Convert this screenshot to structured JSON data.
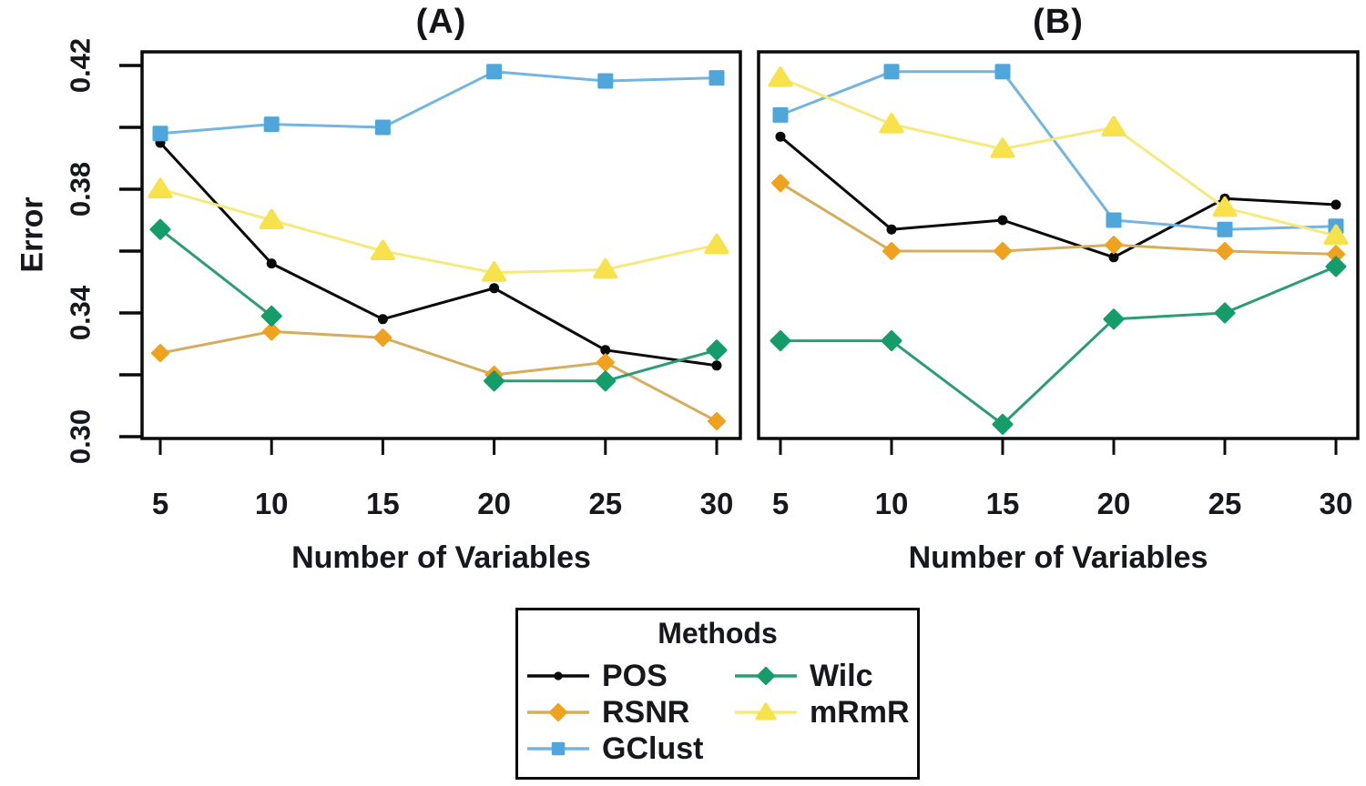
{
  "page": {
    "background": "#ffffff",
    "text_color": "#17171e"
  },
  "colors": {
    "pos_black": "#0a0a0a",
    "rsnr_marker_orange": "#efa21e",
    "rsnr_line_tan": "#d4ad5e",
    "gclust_marker_blue": "#4fa6da",
    "gclust_line_blue": "#74b5e0",
    "wilc_marker_green": "#149c6b",
    "wilc_line_green": "#2b9c75",
    "mrmr_marker_yellow": "#f7e24b",
    "mrmr_line_yellow": "#f6e97e",
    "axis_black": "#0a0a0a"
  },
  "legend": {
    "title": "Methods",
    "entries": [
      {
        "label": "POS",
        "marker": "circle",
        "marker_color": "#0a0a0a",
        "line_color": "#0a0a0a"
      },
      {
        "label": "RSNR",
        "marker": "diamond",
        "marker_color": "#efa21e",
        "line_color": "#d4ad5e"
      },
      {
        "label": "GClust",
        "marker": "square",
        "marker_color": "#4fa6da",
        "line_color": "#74b5e0"
      },
      {
        "label": "Wilc",
        "marker": "diamond",
        "marker_color": "#149c6b",
        "line_color": "#2b9c75"
      },
      {
        "label": "mRmR",
        "marker": "triangle",
        "marker_color": "#f7e24b",
        "line_color": "#f6e97e"
      }
    ]
  },
  "chart_data": [
    {
      "type": "line",
      "title": "(A)",
      "xlabel": "Number of Variables",
      "ylabel": "Error",
      "x": [
        5,
        10,
        15,
        20,
        25,
        30
      ],
      "xtick_labels": [
        "5",
        "10",
        "15",
        "20",
        "25",
        "30"
      ],
      "xlim": [
        5,
        30
      ],
      "ylim": [
        0.3,
        0.42
      ],
      "yticks_labeled": [
        0.42,
        0.38,
        0.34,
        0.3
      ],
      "ytick_labels": [
        "0.42",
        "0.38",
        "0.34",
        "0.30"
      ],
      "yticks_minor": [
        0.4,
        0.36,
        0.32
      ],
      "grid": false,
      "legend_position": "below-figure",
      "series": [
        {
          "name": "POS",
          "marker": "circle",
          "marker_color": "#0a0a0a",
          "line_color": "#0a0a0a",
          "values": [
            0.395,
            0.356,
            0.338,
            0.348,
            0.328,
            0.323
          ]
        },
        {
          "name": "RSNR",
          "marker": "diamond",
          "marker_color": "#efa21e",
          "line_color": "#d4ad5e",
          "values": [
            0.327,
            0.334,
            0.332,
            0.32,
            0.324,
            0.305
          ]
        },
        {
          "name": "GClust",
          "marker": "square",
          "marker_color": "#4fa6da",
          "line_color": "#74b5e0",
          "values": [
            0.398,
            0.401,
            0.4,
            0.418,
            0.415,
            0.416
          ]
        },
        {
          "name": "Wilc",
          "marker": "diamond",
          "marker_color": "#149c6b",
          "line_color": "#2b9c75",
          "values": [
            0.367,
            0.339,
            null,
            0.318,
            0.318,
            0.328
          ]
        },
        {
          "name": "mRmR",
          "marker": "triangle",
          "marker_color": "#f7e24b",
          "line_color": "#f6e97e",
          "values": [
            0.38,
            0.37,
            0.36,
            0.353,
            0.354,
            0.362
          ]
        }
      ]
    },
    {
      "type": "line",
      "title": "(B)",
      "xlabel": "Number of Variables",
      "ylabel": "",
      "x": [
        5,
        10,
        15,
        20,
        25,
        30
      ],
      "xtick_labels": [
        "5",
        "10",
        "15",
        "20",
        "25",
        "30"
      ],
      "xlim": [
        5,
        30
      ],
      "ylim": [
        0.3,
        0.42
      ],
      "yticks_labeled": [],
      "ytick_labels": [],
      "yticks_minor": [],
      "grid": false,
      "legend_position": "below-figure",
      "series": [
        {
          "name": "POS",
          "marker": "circle",
          "marker_color": "#0a0a0a",
          "line_color": "#0a0a0a",
          "values": [
            0.397,
            0.367,
            0.37,
            0.358,
            0.377,
            0.375
          ]
        },
        {
          "name": "RSNR",
          "marker": "diamond",
          "marker_color": "#efa21e",
          "line_color": "#d4ad5e",
          "values": [
            0.382,
            0.36,
            0.36,
            0.362,
            0.36,
            0.359
          ]
        },
        {
          "name": "GClust",
          "marker": "square",
          "marker_color": "#4fa6da",
          "line_color": "#74b5e0",
          "values": [
            0.404,
            0.418,
            0.418,
            0.37,
            0.367,
            0.368
          ]
        },
        {
          "name": "Wilc",
          "marker": "diamond",
          "marker_color": "#149c6b",
          "line_color": "#2b9c75",
          "values": [
            0.331,
            0.331,
            0.304,
            0.338,
            0.34,
            0.355
          ]
        },
        {
          "name": "mRmR",
          "marker": "triangle",
          "marker_color": "#f7e24b",
          "line_color": "#f6e97e",
          "values": [
            0.416,
            0.401,
            0.393,
            0.4,
            0.374,
            0.365
          ]
        }
      ]
    }
  ]
}
